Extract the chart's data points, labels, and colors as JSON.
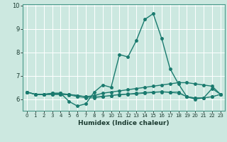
{
  "xlabel": "Humidex (Indice chaleur)",
  "background_color": "#cce8e0",
  "grid_color": "#ffffff",
  "line_color": "#1a7a6e",
  "x_values": [
    0,
    1,
    2,
    3,
    4,
    5,
    6,
    7,
    8,
    9,
    10,
    11,
    12,
    13,
    14,
    15,
    16,
    17,
    18,
    19,
    20,
    21,
    22,
    23
  ],
  "series": [
    [
      6.3,
      6.2,
      6.2,
      6.25,
      6.25,
      5.9,
      5.7,
      5.8,
      6.3,
      6.6,
      6.5,
      7.9,
      7.8,
      8.5,
      9.4,
      9.65,
      8.6,
      7.3,
      6.65,
      6.1,
      6.0,
      6.05,
      6.45,
      6.2
    ],
    [
      6.3,
      6.2,
      6.2,
      6.2,
      6.2,
      6.2,
      6.15,
      6.1,
      6.15,
      6.25,
      6.3,
      6.35,
      6.4,
      6.45,
      6.5,
      6.55,
      6.6,
      6.65,
      6.7,
      6.7,
      6.65,
      6.6,
      6.55,
      6.2
    ],
    [
      6.3,
      6.2,
      6.2,
      6.2,
      6.2,
      6.18,
      6.1,
      6.05,
      6.05,
      6.1,
      6.15,
      6.2,
      6.22,
      6.25,
      6.28,
      6.3,
      6.32,
      6.3,
      6.3,
      6.1,
      6.05,
      6.05,
      6.1,
      6.2
    ],
    [
      6.3,
      6.2,
      6.2,
      6.25,
      6.25,
      6.2,
      6.15,
      6.1,
      6.1,
      6.12,
      6.15,
      6.18,
      6.2,
      6.22,
      6.25,
      6.28,
      6.3,
      6.28,
      6.25,
      6.1,
      6.05,
      6.05,
      6.1,
      6.2
    ]
  ],
  "ylim": [
    5.5,
    10.05
  ],
  "yticks": [
    6,
    7,
    8,
    9,
    10
  ],
  "xlim": [
    -0.5,
    23.5
  ],
  "spine_color": "#4a9a8a"
}
